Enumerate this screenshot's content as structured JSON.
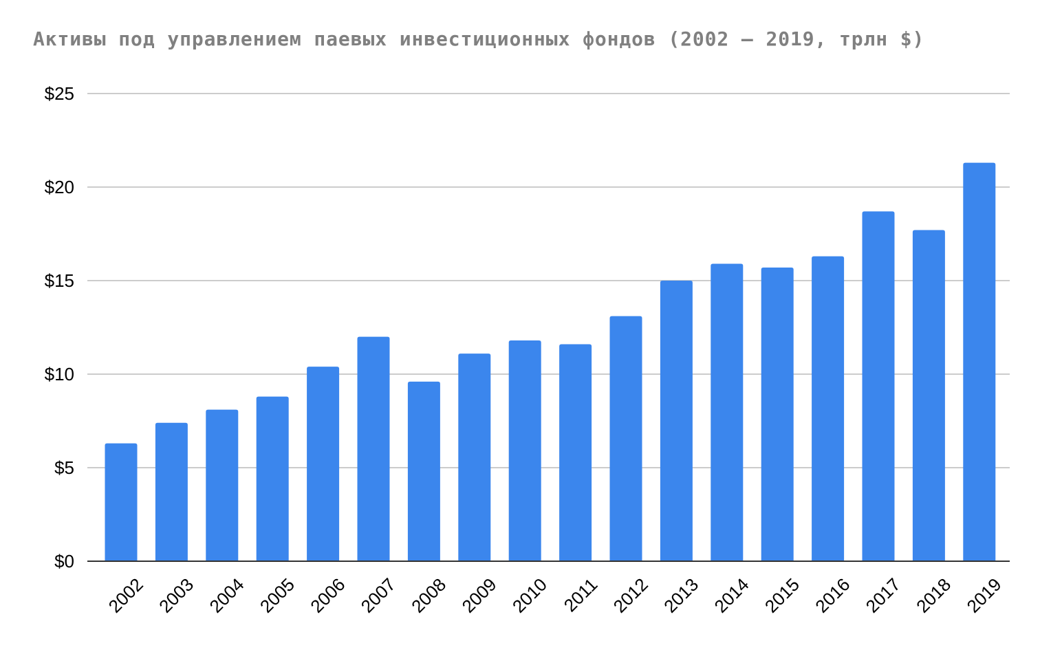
{
  "chart_data": {
    "type": "bar",
    "title": "Активы под управлением паевых инвестиционных фондов (2002 – 2019, трлн $)",
    "xlabel": "",
    "ylabel": "",
    "categories": [
      "2002",
      "2003",
      "2004",
      "2005",
      "2006",
      "2007",
      "2008",
      "2009",
      "2010",
      "2011",
      "2012",
      "2013",
      "2014",
      "2015",
      "2016",
      "2017",
      "2018",
      "2019"
    ],
    "values": [
      6.3,
      7.4,
      8.1,
      8.8,
      10.4,
      12.0,
      9.6,
      11.1,
      11.8,
      11.6,
      13.1,
      15.0,
      15.9,
      15.7,
      16.3,
      18.7,
      17.7,
      21.3
    ],
    "ylim": [
      0,
      25
    ],
    "yticks": [
      0,
      5,
      10,
      15,
      20,
      25
    ],
    "ytick_labels": [
      "$0",
      "$5",
      "$10",
      "$15",
      "$20",
      "$25"
    ],
    "grid": true,
    "legend": "none",
    "bar_color": "#3b86ed",
    "x_tick_rotation": -45
  }
}
